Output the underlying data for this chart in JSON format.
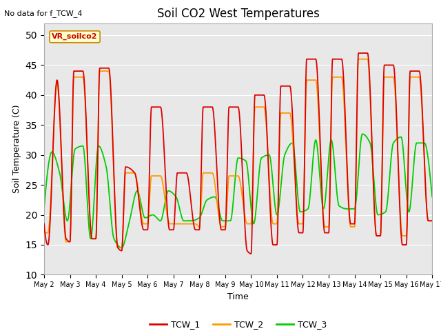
{
  "title": "Soil CO2 West Temperatures",
  "xlabel": "Time",
  "ylabel": "Soil Temperature (C)",
  "ylim": [
    10,
    52
  ],
  "yticks": [
    10,
    15,
    20,
    25,
    30,
    35,
    40,
    45,
    50
  ],
  "no_data_text": "No data for f_TCW_4",
  "annotation_text": "VR_soilco2",
  "bg_color": "#e8e8e8",
  "line_colors": {
    "TCW_1": "#dd0000",
    "TCW_2": "#ff9900",
    "TCW_3": "#00cc00"
  },
  "xtick_labels": [
    "May 2",
    "May 3",
    "May 4",
    "May 5",
    "May 6",
    "May 7",
    "May 8",
    "May 9",
    "May 10",
    "May 11",
    "May 12",
    "May 13",
    "May 14",
    "May 15",
    "May 16",
    "May 17"
  ],
  "TCW_1_x": [
    0.0,
    0.15,
    0.5,
    0.85,
    1.0,
    1.15,
    1.5,
    1.85,
    2.0,
    2.15,
    2.5,
    2.85,
    3.0,
    3.15,
    3.5,
    3.85,
    4.0,
    4.15,
    4.5,
    4.85,
    5.0,
    5.15,
    5.5,
    5.85,
    6.0,
    6.15,
    6.5,
    6.85,
    7.0,
    7.15,
    7.5,
    7.85,
    8.0,
    8.15,
    8.5,
    8.85,
    9.0,
    9.15,
    9.5,
    9.85,
    10.0,
    10.15,
    10.5,
    10.85,
    11.0,
    11.15,
    11.5,
    11.85,
    12.0,
    12.15,
    12.5,
    12.85,
    13.0,
    13.15,
    13.5,
    13.85,
    14.0,
    14.15,
    14.5,
    14.85,
    15.0
  ],
  "TCW_1_y": [
    18.5,
    15.0,
    42.5,
    16.0,
    15.5,
    44.0,
    44.0,
    16.0,
    16.0,
    44.5,
    44.5,
    14.5,
    14.0,
    28.0,
    27.0,
    17.5,
    17.5,
    38.0,
    38.0,
    17.5,
    17.5,
    27.0,
    27.0,
    17.5,
    17.5,
    38.0,
    38.0,
    17.5,
    17.5,
    38.0,
    38.0,
    14.0,
    13.5,
    40.0,
    40.0,
    15.0,
    15.0,
    41.5,
    41.5,
    17.0,
    17.0,
    46.0,
    46.0,
    17.0,
    17.0,
    46.0,
    46.0,
    18.5,
    18.5,
    47.0,
    47.0,
    16.5,
    16.5,
    45.0,
    45.0,
    15.0,
    15.0,
    44.0,
    44.0,
    19.0,
    19.0
  ],
  "TCW_2_x": [
    0.0,
    0.15,
    0.5,
    0.85,
    1.0,
    1.15,
    1.5,
    1.85,
    2.0,
    2.15,
    2.5,
    2.85,
    3.0,
    3.15,
    3.5,
    3.85,
    4.0,
    4.15,
    4.5,
    4.85,
    5.0,
    5.15,
    5.5,
    5.85,
    6.0,
    6.15,
    6.5,
    6.85,
    7.0,
    7.15,
    7.5,
    7.85,
    8.0,
    8.15,
    8.5,
    8.85,
    9.0,
    9.15,
    9.5,
    9.85,
    10.0,
    10.15,
    10.5,
    10.85,
    11.0,
    11.15,
    11.5,
    11.85,
    12.0,
    12.15,
    12.5,
    12.85,
    13.0,
    13.15,
    13.5,
    13.85,
    14.0,
    14.15,
    14.5,
    14.85,
    15.0
  ],
  "TCW_2_y": [
    17.0,
    17.0,
    42.0,
    15.5,
    15.5,
    43.0,
    43.0,
    16.0,
    16.0,
    44.0,
    44.0,
    14.5,
    14.5,
    27.0,
    27.0,
    18.5,
    18.5,
    26.5,
    26.5,
    18.5,
    18.5,
    18.5,
    18.5,
    18.5,
    18.0,
    27.0,
    27.0,
    18.0,
    18.0,
    26.5,
    26.5,
    18.5,
    18.5,
    38.0,
    38.0,
    18.5,
    18.5,
    37.0,
    37.0,
    18.5,
    18.5,
    42.5,
    42.5,
    18.0,
    18.0,
    43.0,
    43.0,
    18.0,
    18.0,
    46.0,
    46.0,
    16.5,
    16.5,
    43.0,
    43.0,
    16.5,
    16.5,
    43.0,
    43.0,
    19.0,
    19.0
  ],
  "TCW_3_x": [
    0.0,
    0.3,
    0.6,
    0.9,
    1.2,
    1.5,
    1.8,
    2.1,
    2.4,
    2.7,
    3.0,
    3.3,
    3.6,
    3.9,
    4.2,
    4.5,
    4.8,
    5.1,
    5.4,
    5.7,
    6.0,
    6.3,
    6.6,
    6.9,
    7.2,
    7.5,
    7.8,
    8.1,
    8.4,
    8.7,
    9.0,
    9.3,
    9.6,
    9.9,
    10.2,
    10.5,
    10.8,
    11.1,
    11.4,
    11.7,
    12.0,
    12.3,
    12.6,
    12.9,
    13.2,
    13.5,
    13.8,
    14.1,
    14.4,
    14.7,
    15.0
  ],
  "TCW_3_y": [
    21.0,
    30.5,
    27.0,
    19.0,
    31.0,
    31.5,
    16.0,
    31.5,
    28.0,
    16.0,
    14.5,
    19.0,
    24.0,
    19.5,
    20.0,
    19.0,
    24.0,
    23.0,
    19.0,
    19.0,
    19.5,
    22.5,
    23.0,
    19.0,
    19.0,
    29.5,
    29.0,
    18.5,
    29.5,
    30.0,
    20.0,
    30.0,
    32.0,
    20.5,
    21.0,
    32.5,
    21.0,
    32.5,
    21.5,
    21.0,
    21.0,
    33.5,
    32.0,
    20.0,
    20.5,
    32.0,
    33.0,
    20.5,
    32.0,
    32.0,
    23.0
  ]
}
